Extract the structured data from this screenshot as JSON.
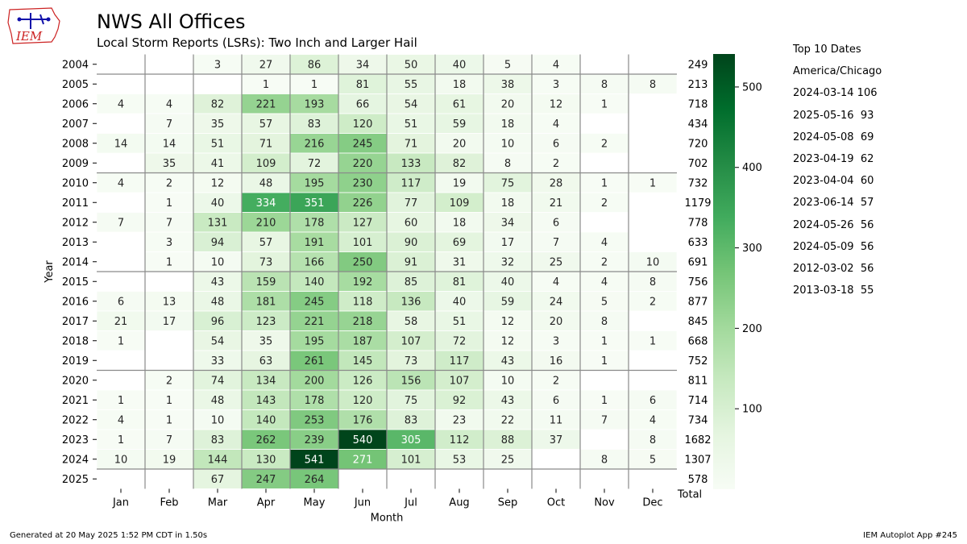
{
  "header": {
    "title": "NWS All Offices",
    "subtitle": "Local Storm Reports (LSRs): Two Inch and Larger Hail",
    "logo_text": "IEM"
  },
  "top10": {
    "heading": "Top 10 Dates",
    "timezone": "America/Chicago",
    "items": [
      "2024-03-14 106",
      "2025-05-16  93",
      "2024-05-08  69",
      "2023-04-19  62",
      "2023-04-04  60",
      "2023-06-14  57",
      "2024-05-26  56",
      "2024-05-09  56",
      "2012-03-02  56",
      "2013-03-18  55"
    ]
  },
  "footer": {
    "left": "Generated at 20 May 2025 1:52 PM CDT in 1.50s",
    "right": "IEM Autoplot App #245"
  },
  "chart_data": {
    "type": "heatmap",
    "xlabel": "Month",
    "ylabel": "Year",
    "total_label": "Total",
    "months": [
      "Jan",
      "Feb",
      "Mar",
      "Apr",
      "May",
      "Jun",
      "Jul",
      "Aug",
      "Sep",
      "Oct",
      "Nov",
      "Dec"
    ],
    "years": [
      "2004",
      "2005",
      "2006",
      "2007",
      "2008",
      "2009",
      "2010",
      "2011",
      "2012",
      "2013",
      "2014",
      "2015",
      "2016",
      "2017",
      "2018",
      "2019",
      "2020",
      "2021",
      "2022",
      "2023",
      "2024",
      "2025"
    ],
    "values": [
      [
        null,
        null,
        3,
        27,
        86,
        34,
        50,
        40,
        5,
        4,
        null,
        null
      ],
      [
        null,
        null,
        null,
        1,
        1,
        81,
        55,
        18,
        38,
        3,
        8,
        8
      ],
      [
        4,
        4,
        82,
        221,
        193,
        66,
        54,
        61,
        20,
        12,
        1,
        null
      ],
      [
        null,
        7,
        35,
        57,
        83,
        120,
        51,
        59,
        18,
        4,
        null,
        null
      ],
      [
        14,
        14,
        51,
        71,
        216,
        245,
        71,
        20,
        10,
        6,
        2,
        null
      ],
      [
        null,
        35,
        41,
        109,
        72,
        220,
        133,
        82,
        8,
        2,
        null,
        null
      ],
      [
        4,
        2,
        12,
        48,
        195,
        230,
        117,
        19,
        75,
        28,
        1,
        1
      ],
      [
        null,
        1,
        40,
        334,
        351,
        226,
        77,
        109,
        18,
        21,
        2,
        null
      ],
      [
        7,
        7,
        131,
        210,
        178,
        127,
        60,
        18,
        34,
        6,
        null,
        null
      ],
      [
        null,
        3,
        94,
        57,
        191,
        101,
        90,
        69,
        17,
        7,
        4,
        null
      ],
      [
        null,
        1,
        10,
        73,
        166,
        250,
        91,
        31,
        32,
        25,
        2,
        10
      ],
      [
        null,
        null,
        43,
        159,
        140,
        192,
        85,
        81,
        40,
        4,
        4,
        8
      ],
      [
        6,
        13,
        48,
        181,
        245,
        118,
        136,
        40,
        59,
        24,
        5,
        2
      ],
      [
        21,
        17,
        96,
        123,
        221,
        218,
        58,
        51,
        12,
        20,
        8,
        null
      ],
      [
        1,
        null,
        54,
        35,
        195,
        187,
        107,
        72,
        12,
        3,
        1,
        1
      ],
      [
        null,
        null,
        33,
        63,
        261,
        145,
        73,
        117,
        43,
        16,
        1,
        null
      ],
      [
        null,
        2,
        74,
        134,
        200,
        126,
        156,
        107,
        10,
        2,
        null,
        null
      ],
      [
        1,
        1,
        48,
        143,
        178,
        120,
        75,
        92,
        43,
        6,
        1,
        6
      ],
      [
        4,
        1,
        10,
        140,
        253,
        176,
        83,
        23,
        22,
        11,
        7,
        4
      ],
      [
        1,
        7,
        83,
        262,
        239,
        540,
        305,
        112,
        88,
        37,
        null,
        8
      ],
      [
        10,
        19,
        144,
        130,
        541,
        271,
        101,
        53,
        25,
        null,
        8,
        5
      ],
      [
        null,
        null,
        67,
        247,
        264,
        null,
        null,
        null,
        null,
        null,
        null,
        null
      ]
    ],
    "totals": [
      249,
      213,
      718,
      434,
      720,
      702,
      732,
      1179,
      778,
      633,
      691,
      756,
      877,
      845,
      668,
      752,
      811,
      714,
      734,
      1682,
      1307,
      578
    ],
    "colorbar": {
      "min": 0,
      "max": 541,
      "ticks": [
        100,
        200,
        300,
        400,
        500
      ],
      "colormap": "Greens"
    },
    "color_low": "#f7fcf5",
    "color_high": "#00441b"
  }
}
